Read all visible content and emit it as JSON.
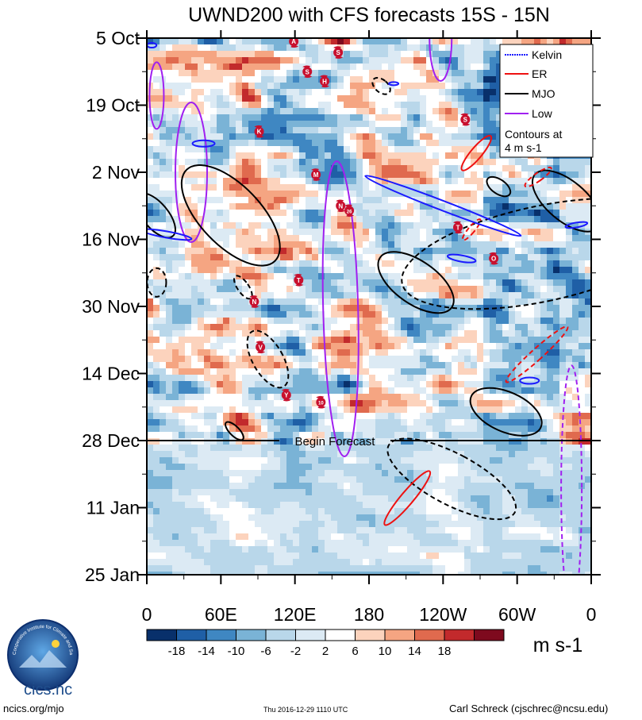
{
  "chart_data": {
    "type": "heatmap",
    "title": "UWND200 with CFS forecasts  15S - 15N",
    "y_axis": {
      "direction": "time-down",
      "tick_labels": [
        "5 Oct",
        "19 Oct",
        "2 Nov",
        "16 Nov",
        "30 Nov",
        "14 Dec",
        "28 Dec",
        "11 Jan",
        "25 Jan"
      ],
      "range_days": [
        0,
        112
      ]
    },
    "x_axis": {
      "tick_labels": [
        "0",
        "60E",
        "120E",
        "180",
        "120W",
        "60W",
        "0"
      ],
      "range_deg_east": [
        0,
        360
      ]
    },
    "forecast_line": {
      "label": "Begin Forecast",
      "day": 84
    },
    "legend": {
      "items": [
        {
          "name": "Kelvin",
          "color": "#1a1aff",
          "style": "dotted"
        },
        {
          "name": "ER",
          "color": "#ee1111",
          "style": "solid"
        },
        {
          "name": "MJO",
          "color": "#000000",
          "style": "solid"
        },
        {
          "name": "Low",
          "color": "#a020f0",
          "style": "solid"
        }
      ],
      "note": "Contours at 4 m s-1",
      "placement": "top-right"
    },
    "colorbar": {
      "labels": [
        "-18",
        "-14",
        "-10",
        "-6",
        "-2",
        "2",
        "6",
        "10",
        "14",
        "18"
      ],
      "colors": [
        "#08306b",
        "#1f5fa6",
        "#3f87c2",
        "#7ab3d6",
        "#b9d7ea",
        "#dceaf4",
        "#ffffff",
        "#fcd3bd",
        "#f5a582",
        "#e06a4e",
        "#c22a2c",
        "#7e0a1e"
      ],
      "units": "m s-1"
    },
    "storms": [
      {
        "label": "A",
        "lon": 119,
        "day": 0.7
      },
      {
        "label": "S",
        "lon": 155,
        "day": 3
      },
      {
        "label": "S",
        "lon": 130,
        "day": 7
      },
      {
        "label": "H",
        "lon": 144,
        "day": 9
      },
      {
        "label": "S",
        "lon": 258,
        "day": 17
      },
      {
        "label": "K",
        "lon": 91,
        "day": 19.5
      },
      {
        "label": "M",
        "lon": 137,
        "day": 28.5
      },
      {
        "label": "N",
        "lon": 157,
        "day": 35
      },
      {
        "label": "26",
        "lon": 164,
        "day": 36
      },
      {
        "label": "T",
        "lon": 252,
        "day": 39.5
      },
      {
        "label": "O",
        "lon": 281,
        "day": 46
      },
      {
        "label": "T",
        "lon": 123,
        "day": 50.5
      },
      {
        "label": "N",
        "lon": 87,
        "day": 55
      },
      {
        "label": "V",
        "lon": 92,
        "day": 64.5
      },
      {
        "label": "Y",
        "lon": 113,
        "day": 74.5
      },
      {
        "label": "10",
        "lon": 141,
        "day": 76
      }
    ]
  },
  "footer": {
    "left": "ncics.org/mjo",
    "center": "Thu 2016-12-29 1110 UTC",
    "right": "Carl Schreck (cjschrec@ncsu.edu)"
  },
  "logo": {
    "name": "cics.nc",
    "ring_text": "Cooperative Institute for Climate and Satellites"
  }
}
